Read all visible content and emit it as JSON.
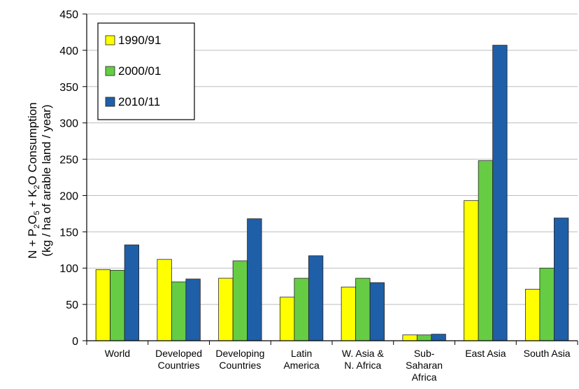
{
  "chart_data": {
    "type": "bar",
    "categories": [
      [
        "World"
      ],
      [
        "Developed",
        "Countries"
      ],
      [
        "Developing",
        "Countries"
      ],
      [
        "Latin",
        "America"
      ],
      [
        "W. Asia &",
        "N. Africa"
      ],
      [
        "Sub-",
        "Saharan",
        "Africa"
      ],
      [
        "East Asia"
      ],
      [
        "South Asia"
      ]
    ],
    "series": [
      {
        "name": "1990/91",
        "color": "#ffff00",
        "values": [
          98,
          112,
          86,
          60,
          74,
          8,
          193,
          71
        ]
      },
      {
        "name": "2000/01",
        "color": "#66cc44",
        "values": [
          97,
          81,
          110,
          86,
          86,
          8,
          248,
          100
        ]
      },
      {
        "name": "2010/11",
        "color": "#1f5fa8",
        "values": [
          132,
          85,
          168,
          117,
          80,
          9,
          407,
          169
        ]
      }
    ],
    "ylabel_line1": {
      "parts": [
        {
          "text": "N + P"
        },
        {
          "text": "2",
          "sub": true
        },
        {
          "text": "O"
        },
        {
          "text": "5",
          "sub": true
        },
        {
          "text": " + K"
        },
        {
          "text": "2",
          "sub": true
        },
        {
          "text": "O Consumption"
        }
      ]
    },
    "ylabel_line2": "(kg / ha of arable land / year)",
    "ylim": [
      0,
      450
    ],
    "yticks": [
      0,
      50,
      100,
      150,
      200,
      250,
      300,
      350,
      400,
      450
    ],
    "grid": true,
    "legend": "top-left"
  }
}
